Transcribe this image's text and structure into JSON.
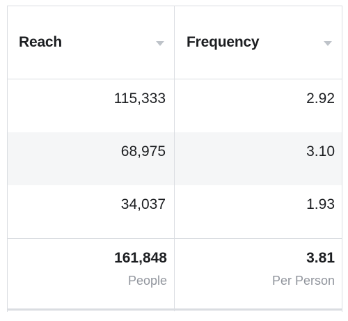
{
  "columns": [
    {
      "title": "Reach",
      "icon": "caret-down-icon"
    },
    {
      "title": "Frequency",
      "icon": "caret-down-icon"
    }
  ],
  "rows": [
    {
      "reach": "115,333",
      "frequency": "2.92"
    },
    {
      "reach": "68,975",
      "frequency": "3.10"
    },
    {
      "reach": "34,037",
      "frequency": "1.93"
    }
  ],
  "summary": {
    "reach": {
      "value": "161,848",
      "label": "People"
    },
    "frequency": {
      "value": "3.81",
      "label": "Per Person"
    }
  },
  "colors": {
    "border": "#dadde1",
    "stripe": "#f5f6f7",
    "muted_text": "#90949c",
    "caret": "#bec3c9"
  }
}
